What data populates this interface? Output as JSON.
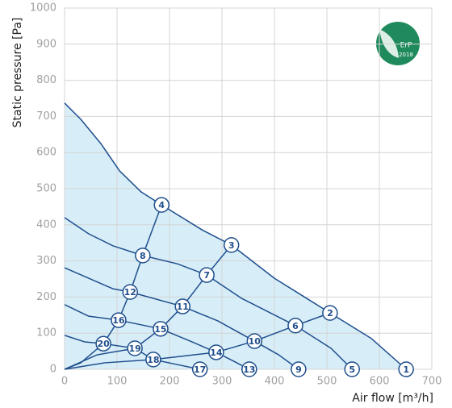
{
  "chart_data": {
    "type": "line",
    "ylabel": "Static pressure [Pa]",
    "xlabel": "Air flow [m³/h]",
    "xlim": [
      0,
      700
    ],
    "xticks": [
      0,
      100,
      200,
      300,
      400,
      500,
      600,
      700
    ],
    "ylim": [
      0,
      1000
    ],
    "yticks": [
      0,
      100,
      200,
      300,
      400,
      500,
      600,
      700,
      800,
      900,
      1000
    ],
    "grid": true,
    "color": "#1f4e8c",
    "area_color": "#d7eef9",
    "badge": {
      "text": "ErP",
      "year": "2018"
    },
    "series": [
      {
        "x": [
          0,
          31,
          69,
          105,
          146,
          185,
          262,
          318,
          400,
          506,
          585,
          651
        ],
        "values": [
          737,
          692,
          625,
          549,
          491,
          455,
          386,
          344,
          252,
          156,
          85,
          0
        ]
      },
      {
        "x": [
          0,
          46,
          92,
          149,
          215,
          271,
          338,
          440,
          508,
          548
        ],
        "values": [
          420,
          375,
          342,
          315,
          292,
          261,
          196,
          121,
          58,
          0
        ]
      },
      {
        "x": [
          0,
          46,
          92,
          125,
          225,
          292,
          362,
          408,
          446
        ],
        "values": [
          281,
          252,
          223,
          214,
          174,
          134,
          78,
          40,
          0
        ]
      },
      {
        "x": [
          0,
          46,
          103,
          183,
          246,
          289,
          323,
          352
        ],
        "values": [
          179,
          147,
          136,
          112,
          74,
          47,
          22,
          0
        ]
      },
      {
        "x": [
          0,
          38,
          74,
          134,
          169,
          215,
          258
        ],
        "values": [
          94,
          76,
          71,
          58,
          27,
          13,
          0
        ]
      },
      {
        "x": [
          0,
          31,
          74,
          103,
          125,
          149,
          185
        ],
        "values": [
          0,
          18,
          71,
          136,
          214,
          315,
          455
        ]
      },
      {
        "x": [
          0,
          62,
          134,
          183,
          225,
          271,
          318
        ],
        "values": [
          0,
          40,
          58,
          112,
          174,
          261,
          344
        ]
      },
      {
        "x": [
          0,
          77,
          169,
          289,
          362,
          440,
          506
        ],
        "values": [
          0,
          18,
          27,
          47,
          78,
          121,
          156
        ]
      }
    ],
    "points": [
      {
        "label": "1",
        "x": 651,
        "y": 0
      },
      {
        "label": "2",
        "x": 506,
        "y": 156
      },
      {
        "label": "3",
        "x": 318,
        "y": 344
      },
      {
        "label": "4",
        "x": 185,
        "y": 455
      },
      {
        "label": "5",
        "x": 548,
        "y": 0
      },
      {
        "label": "6",
        "x": 440,
        "y": 121
      },
      {
        "label": "7",
        "x": 271,
        "y": 261
      },
      {
        "label": "8",
        "x": 149,
        "y": 315
      },
      {
        "label": "9",
        "x": 446,
        "y": 0
      },
      {
        "label": "10",
        "x": 362,
        "y": 78
      },
      {
        "label": "11",
        "x": 225,
        "y": 174
      },
      {
        "label": "12",
        "x": 125,
        "y": 214
      },
      {
        "label": "13",
        "x": 352,
        "y": 0
      },
      {
        "label": "14",
        "x": 289,
        "y": 47
      },
      {
        "label": "15",
        "x": 183,
        "y": 112
      },
      {
        "label": "16",
        "x": 103,
        "y": 136
      },
      {
        "label": "17",
        "x": 258,
        "y": 0
      },
      {
        "label": "18",
        "x": 169,
        "y": 27
      },
      {
        "label": "19",
        "x": 134,
        "y": 58
      },
      {
        "label": "20",
        "x": 74,
        "y": 71
      }
    ]
  }
}
